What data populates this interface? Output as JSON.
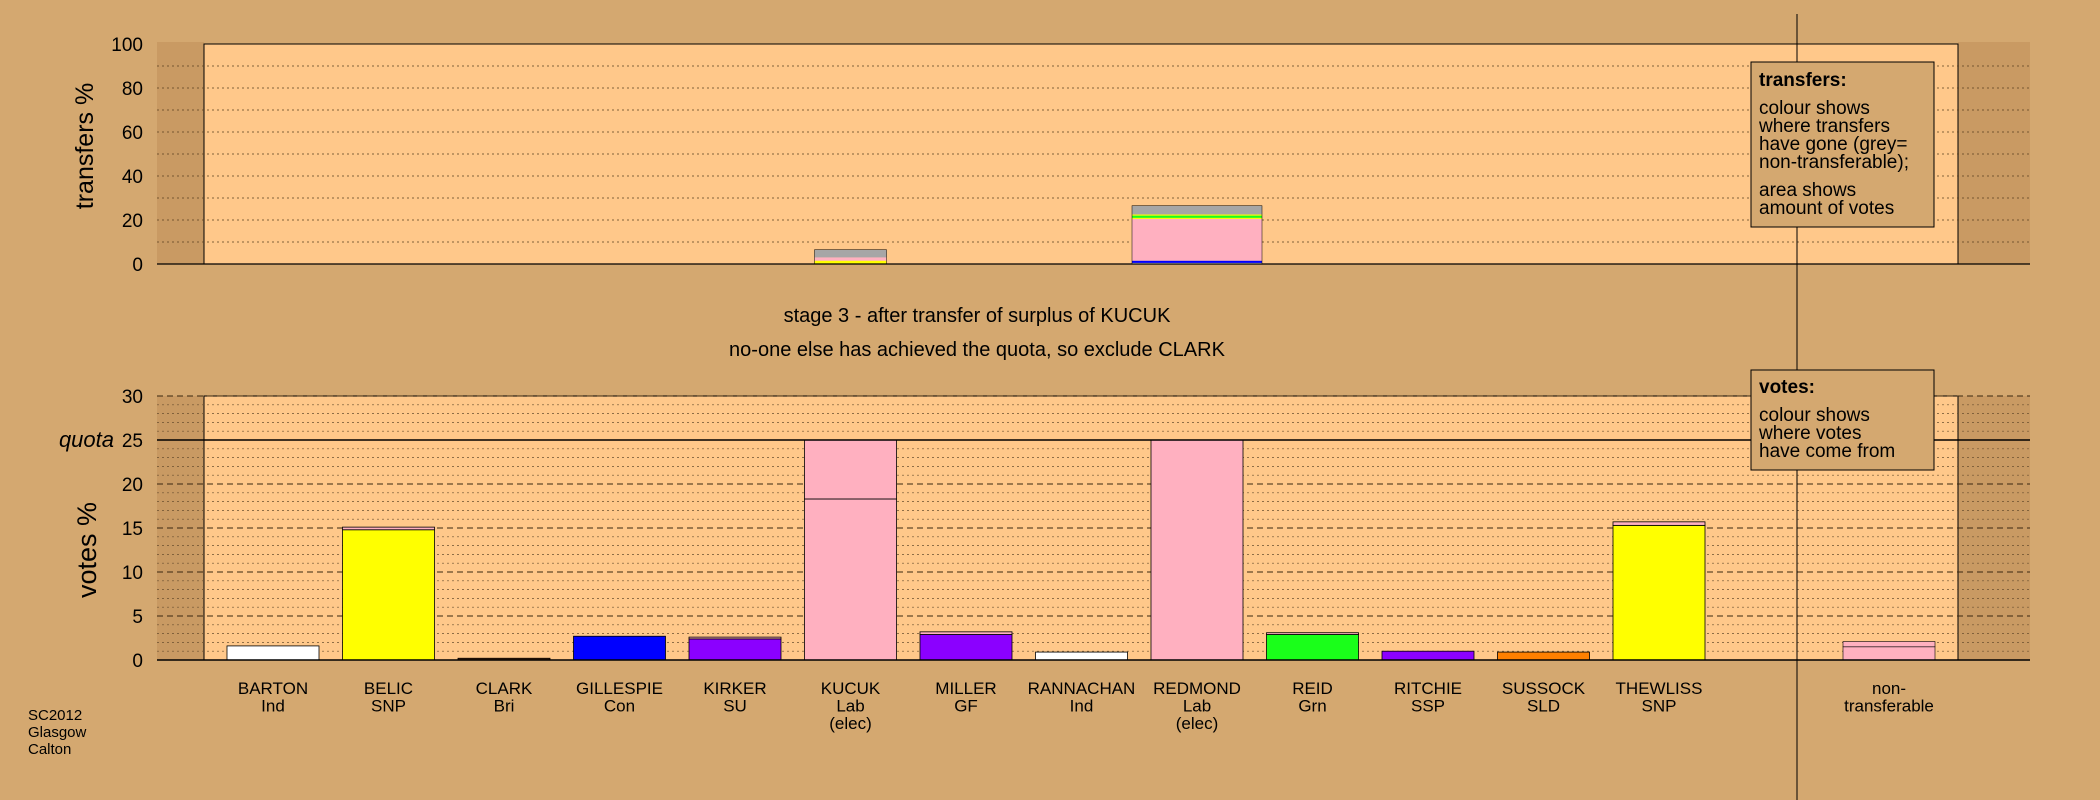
{
  "chart_data": [
    {
      "type": "bar",
      "stacked": true,
      "ylabel": "transfers %",
      "ylim": [
        0,
        100
      ],
      "yticks": [
        "0",
        "20",
        "40",
        "60",
        "80",
        "100"
      ],
      "legend": {
        "title": "transfers:",
        "lines1": [
          "colour shows",
          "where transfers",
          "have gone (grey=",
          "non-transferable);"
        ],
        "lines2": [
          "area shows",
          "amount of votes"
        ],
        "position": "top-right"
      },
      "bars": [
        {
          "category": "KUCUK",
          "segments": [
            {
              "value": 1.5,
              "color": "#ffff00"
            },
            {
              "value": 1.5,
              "color": "#ffb0c0"
            },
            {
              "value": 3.5,
              "color": "#a6a6a6"
            }
          ]
        },
        {
          "category": "REDMOND",
          "segments": [
            {
              "value": 0.5,
              "color": "#ffffff"
            },
            {
              "value": 1.0,
              "color": "#0000ff"
            },
            {
              "value": 19.0,
              "color": "#ffb0c0"
            },
            {
              "value": 0.5,
              "color": "#ffff00"
            },
            {
              "value": 1.0,
              "color": "#1aff1a"
            },
            {
              "value": 0.5,
              "color": "#ffff00"
            },
            {
              "value": 4.0,
              "color": "#a6a6a6"
            }
          ]
        }
      ]
    },
    {
      "type": "bar",
      "stacked": true,
      "ylabel": "votes %",
      "ylim": [
        0,
        30
      ],
      "yticks": [
        "0",
        "5",
        "10",
        "15",
        "20",
        "25",
        "30"
      ],
      "quota": {
        "label": "quota",
        "value": 25
      },
      "legend": {
        "title": "votes:",
        "lines1": [
          "colour shows",
          "where votes",
          "have come from"
        ],
        "position": "top-right"
      },
      "categories": [
        {
          "name": "BARTON",
          "party": "Ind",
          "note": ""
        },
        {
          "name": "BELIC",
          "party": "SNP",
          "note": ""
        },
        {
          "name": "CLARK",
          "party": "Bri",
          "note": ""
        },
        {
          "name": "GILLESPIE",
          "party": "Con",
          "note": ""
        },
        {
          "name": "KIRKER",
          "party": "SU",
          "note": ""
        },
        {
          "name": "KUCUK",
          "party": "Lab",
          "note": "(elec)"
        },
        {
          "name": "MILLER",
          "party": "GF",
          "note": ""
        },
        {
          "name": "RANNACHAN",
          "party": "Ind",
          "note": ""
        },
        {
          "name": "REDMOND",
          "party": "Lab",
          "note": "(elec)"
        },
        {
          "name": "REID",
          "party": "Grn",
          "note": ""
        },
        {
          "name": "RITCHIE",
          "party": "SSP",
          "note": ""
        },
        {
          "name": "SUSSOCK",
          "party": "SLD",
          "note": ""
        },
        {
          "name": "THEWLISS",
          "party": "SNP",
          "note": ""
        }
      ],
      "bars": [
        {
          "segments": [
            {
              "value": 1.6,
              "color": "#ffffff"
            }
          ]
        },
        {
          "segments": [
            {
              "value": 14.8,
              "color": "#ffff00"
            },
            {
              "value": 0.3,
              "color": "#ffb0c0"
            }
          ]
        },
        {
          "segments": [
            {
              "value": 0.2,
              "color": "#5a2d0c"
            }
          ]
        },
        {
          "segments": [
            {
              "value": 2.7,
              "color": "#0000ff"
            }
          ]
        },
        {
          "segments": [
            {
              "value": 2.4,
              "color": "#8b00ff"
            },
            {
              "value": 0.2,
              "color": "#ffb0c0"
            }
          ]
        },
        {
          "segments": [
            {
              "value": 18.3,
              "color": "#ffb0c0"
            },
            {
              "value": 6.7,
              "color": "#ffb0c0"
            }
          ]
        },
        {
          "segments": [
            {
              "value": 2.9,
              "color": "#8b00ff"
            },
            {
              "value": 0.3,
              "color": "#ffb0c0"
            }
          ]
        },
        {
          "segments": [
            {
              "value": 0.9,
              "color": "#ffffff"
            }
          ]
        },
        {
          "segments": [
            {
              "value": 25.0,
              "color": "#ffb0c0"
            }
          ]
        },
        {
          "segments": [
            {
              "value": 2.9,
              "color": "#1aff1a"
            },
            {
              "value": 0.2,
              "color": "#ffb0c0"
            }
          ]
        },
        {
          "segments": [
            {
              "value": 1.0,
              "color": "#8b00ff"
            }
          ]
        },
        {
          "segments": [
            {
              "value": 0.9,
              "color": "#ff8000"
            }
          ]
        },
        {
          "segments": [
            {
              "value": 15.3,
              "color": "#ffff00"
            },
            {
              "value": 0.4,
              "color": "#ffb0c0"
            }
          ]
        }
      ],
      "nontransferable": {
        "label_lines": [
          "non-",
          "transferable"
        ],
        "segments": [
          {
            "value": 1.5,
            "color": "#ffb0c0"
          },
          {
            "value": 0.6,
            "color": "#ffb0c0"
          }
        ]
      }
    }
  ],
  "stage_title": "stage 3 - after transfer of surplus of KUCUK",
  "stage_subtitle": "no-one else has achieved the quota, so exclude CLARK",
  "source_lines": [
    "SC2012",
    "Glasgow",
    "Calton"
  ],
  "colors": {
    "background": "#d4a870",
    "plot_fill": "#ffc88a",
    "margin_shade": "#c99a63"
  }
}
